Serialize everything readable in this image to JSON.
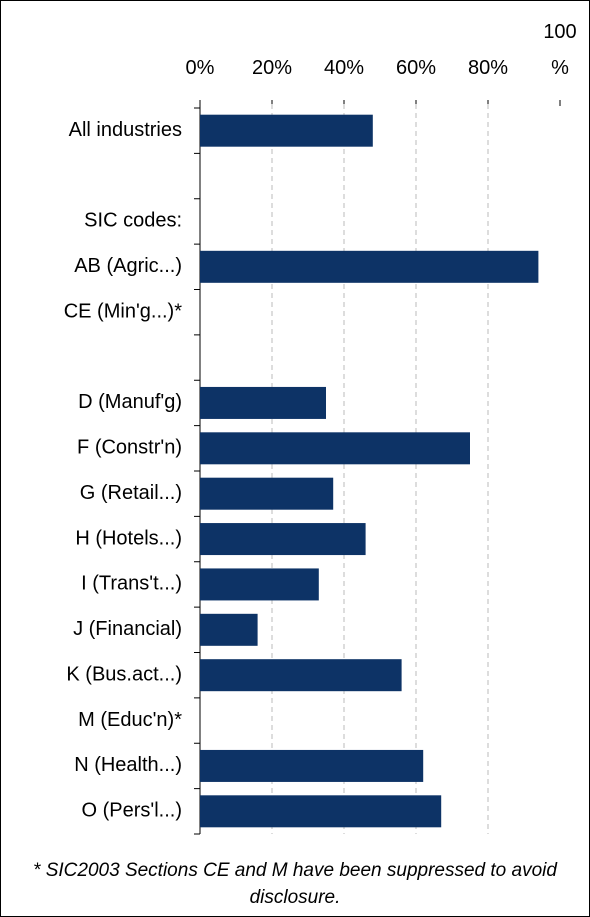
{
  "chart_data": {
    "type": "bar",
    "orientation": "horizontal",
    "categories": [
      "All industries",
      null,
      "SIC codes:",
      "AB (Agric...)",
      "CE (Min'g...)*",
      null,
      "D (Manuf'g)",
      "F (Constr'n)",
      "G (Retail...)",
      "H (Hotels...)",
      "I (Trans't...)",
      "J (Financial)",
      "K (Bus.act...)",
      "M (Educ'n)*",
      "N (Health...)",
      "O (Pers'l...)"
    ],
    "values": [
      48,
      null,
      null,
      94,
      null,
      null,
      35,
      75,
      37,
      46,
      33,
      16,
      56,
      null,
      62,
      67
    ],
    "color": "#0d3366",
    "xlim": [
      0,
      100
    ],
    "xticks": [
      {
        "value": 0,
        "label": "0%"
      },
      {
        "value": 20,
        "label": "20%"
      },
      {
        "value": 40,
        "label": "40%"
      },
      {
        "value": 60,
        "label": "60%"
      },
      {
        "value": 80,
        "label": "80%"
      },
      {
        "value": 100,
        "label": "100 %"
      }
    ],
    "grid": true,
    "note": "* SIC2003 Sections CE and M have been suppressed to avoid disclosure."
  }
}
